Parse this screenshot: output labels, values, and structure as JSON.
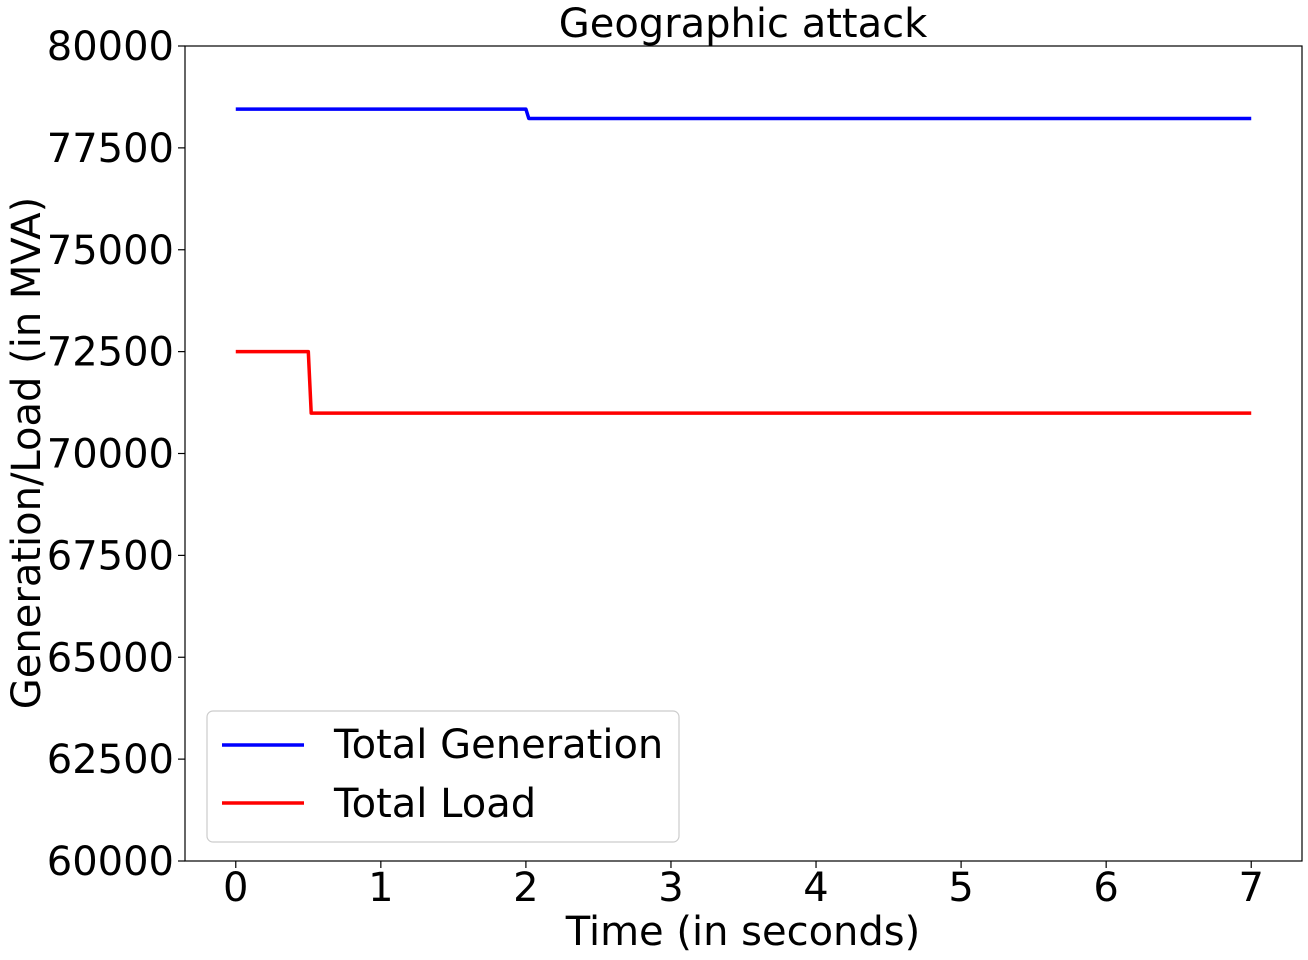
{
  "chart_data": {
    "type": "line",
    "title": "Geographic attack",
    "xlabel": "Time (in seconds)",
    "ylabel": "Generation/Load (in MVA)",
    "xlim": [
      -0.35,
      7.35
    ],
    "ylim": [
      60000,
      80000
    ],
    "xticks": [
      0,
      1,
      2,
      3,
      4,
      5,
      6,
      7
    ],
    "yticks": [
      60000,
      62500,
      65000,
      67500,
      70000,
      72500,
      75000,
      77500,
      80000
    ],
    "grid": false,
    "legend_position": "lower-left",
    "series": [
      {
        "name": "Total Generation",
        "color": "#0000ff",
        "x": [
          0,
          2.0,
          2.02,
          7
        ],
        "y": [
          78450,
          78450,
          78220,
          78220
        ]
      },
      {
        "name": "Total Load",
        "color": "#ff0000",
        "x": [
          0,
          0.5,
          0.52,
          7
        ],
        "y": [
          72500,
          72500,
          70990,
          70990
        ]
      }
    ]
  }
}
